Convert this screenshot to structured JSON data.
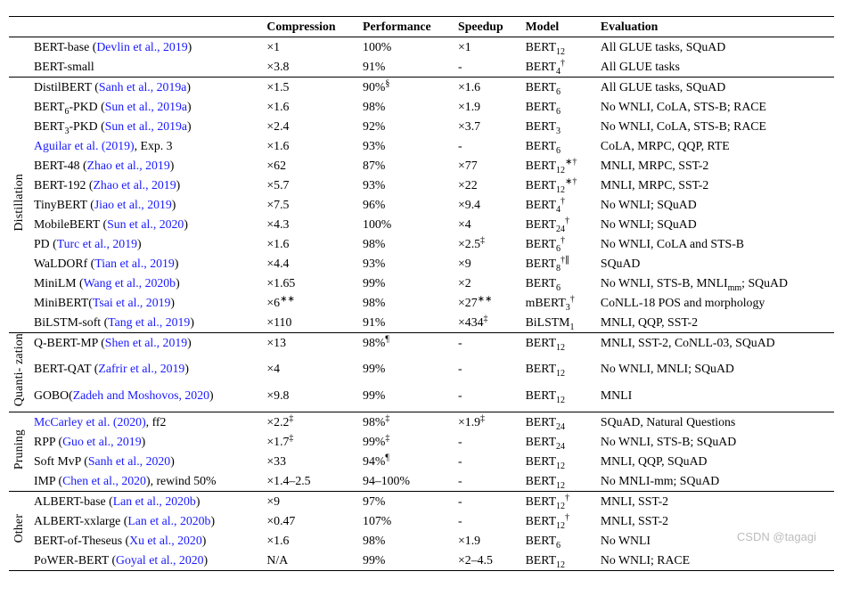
{
  "columns": [
    "Compression",
    "Performance",
    "Speedup",
    "Model",
    "Evaluation"
  ],
  "groups": [
    {
      "label": "",
      "rows": [
        {
          "name_plain": "BERT-base (",
          "ref": "Devlin et al., 2019",
          "name_tail": ")",
          "compression": "×1",
          "performance": "100%",
          "speedup": "×1",
          "model_base": "BERT",
          "model_sub": "12",
          "model_sup": "",
          "evaluation": "All GLUE tasks, SQuAD"
        },
        {
          "name_plain": "BERT-small",
          "ref": "",
          "name_tail": "",
          "compression": "×3.8",
          "performance": "91%",
          "speedup": "-",
          "model_base": "BERT",
          "model_sub": "4",
          "model_sup": "†",
          "evaluation": "All GLUE tasks"
        }
      ]
    },
    {
      "label": "Distillation",
      "rows": [
        {
          "name_plain": "DistilBERT (",
          "ref": "Sanh et al., 2019a",
          "name_tail": ")",
          "compression": "×1.5",
          "performance": "90%",
          "perf_sup": "§",
          "speedup": "×1.6",
          "model_base": "BERT",
          "model_sub": "6",
          "model_sup": "",
          "evaluation": "All GLUE tasks, SQuAD"
        },
        {
          "name_plain": "BERT",
          "name_sub": "6",
          "name_plain2": "-PKD (",
          "ref": "Sun et al., 2019a",
          "name_tail": ")",
          "compression": "×1.6",
          "performance": "98%",
          "speedup": "×1.9",
          "model_base": "BERT",
          "model_sub": "6",
          "model_sup": "",
          "evaluation": "No WNLI, CoLA, STS-B; RACE"
        },
        {
          "name_plain": "BERT",
          "name_sub": "3",
          "name_plain2": "-PKD (",
          "ref": "Sun et al., 2019a",
          "name_tail": ")",
          "compression": "×2.4",
          "performance": "92%",
          "speedup": "×3.7",
          "model_base": "BERT",
          "model_sub": "3",
          "model_sup": "",
          "evaluation": "No WNLI, CoLA, STS-B; RACE"
        },
        {
          "name_plain": "",
          "ref": "Aguilar et al. (2019)",
          "name_tail": ", Exp. 3",
          "compression": "×1.6",
          "performance": "93%",
          "speedup": "-",
          "model_base": "BERT",
          "model_sub": "6",
          "model_sup": "",
          "evaluation": "CoLA, MRPC, QQP, RTE"
        },
        {
          "name_plain": "BERT-48 (",
          "ref": "Zhao et al., 2019",
          "name_tail": ")",
          "compression": "×62",
          "performance": "87%",
          "speedup": "×77",
          "model_base": "BERT",
          "model_sub": "12",
          "model_sup": "∗†",
          "evaluation": "MNLI, MRPC, SST-2"
        },
        {
          "name_plain": "BERT-192 (",
          "ref": "Zhao et al., 2019",
          "name_tail": ")",
          "compression": "×5.7",
          "performance": "93%",
          "speedup": "×22",
          "model_base": "BERT",
          "model_sub": "12",
          "model_sup": "∗†",
          "evaluation": "MNLI, MRPC, SST-2"
        },
        {
          "name_plain": "TinyBERT (",
          "ref": "Jiao et al., 2019",
          "name_tail": ")",
          "compression": "×7.5",
          "performance": "96%",
          "speedup": "×9.4",
          "model_base": "BERT",
          "model_sub": "4",
          "model_sup": "†",
          "evaluation": "No WNLI; SQuAD"
        },
        {
          "name_plain": "MobileBERT (",
          "ref": "Sun et al., 2020",
          "name_tail": ")",
          "compression": "×4.3",
          "performance": "100%",
          "speedup": "×4",
          "model_base": "BERT",
          "model_sub": "24",
          "model_sup": "†",
          "evaluation": "No WNLI; SQuAD"
        },
        {
          "name_plain": "PD (",
          "ref": "Turc et al., 2019",
          "name_tail": ")",
          "compression": "×1.6",
          "performance": "98%",
          "speedup": "×2.5",
          "speed_sup": "‡",
          "model_base": "BERT",
          "model_sub": "6",
          "model_sup": "†",
          "evaluation": "No WNLI, CoLA and STS-B"
        },
        {
          "name_plain": "WaLDORf (",
          "ref": "Tian et al., 2019",
          "name_tail": ")",
          "compression": "×4.4",
          "performance": "93%",
          "speedup": "×9",
          "model_base": "BERT",
          "model_sub": "8",
          "model_sup": "†∥",
          "evaluation": "SQuAD"
        },
        {
          "name_plain": "MiniLM (",
          "ref": "Wang et al., 2020b",
          "name_tail": ")",
          "compression": "×1.65",
          "performance": "99%",
          "speedup": "×2",
          "model_base": "BERT",
          "model_sub": "6",
          "model_sup": "",
          "evaluation": "No WNLI, STS-B, MNLI",
          "eval_sub": "mm",
          "eval_tail": "; SQuAD"
        },
        {
          "name_plain": "MiniBERT(",
          "ref": "Tsai et al., 2019",
          "name_tail": ")",
          "compression": "×6",
          "comp_sup": "∗∗",
          "performance": "98%",
          "speedup": "×27",
          "speed_sup": "∗∗",
          "model_base": "mBERT",
          "model_sub": "3",
          "model_sup": "†",
          "evaluation": "CoNLL-18 POS and morphology"
        },
        {
          "name_plain": "BiLSTM-soft (",
          "ref": "Tang et al., 2019",
          "name_tail": ")",
          "compression": "×110",
          "performance": "91%",
          "speedup": "×434",
          "speed_sup": "‡",
          "model_base": "BiLSTM",
          "model_sub": "1",
          "model_sup": "",
          "evaluation": "MNLI, QQP, SST-2"
        }
      ]
    },
    {
      "label": "Quanti-\nzation",
      "rows": [
        {
          "name_plain": "Q-BERT-MP (",
          "ref": "Shen et al., 2019",
          "name_tail": ")",
          "compression": "×13",
          "performance": "98%",
          "perf_sup": "¶",
          "speedup": "-",
          "model_base": "BERT",
          "model_sub": "12",
          "model_sup": "",
          "evaluation": "MNLI, SST-2, CoNLL-03, SQuAD"
        },
        {
          "name_plain": "BERT-QAT (",
          "ref": "Zafrir et al., 2019",
          "name_tail": ")",
          "compression": "×4",
          "performance": "99%",
          "speedup": "-",
          "model_base": "BERT",
          "model_sub": "12",
          "model_sup": "",
          "evaluation": "No WNLI, MNLI; SQuAD"
        },
        {
          "name_plain": "GOBO(",
          "ref": "Zadeh and Moshovos, 2020",
          "name_tail": ")",
          "compression": "×9.8",
          "performance": "99%",
          "speedup": "-",
          "model_base": "BERT",
          "model_sub": "12",
          "model_sup": "",
          "evaluation": "MNLI"
        }
      ]
    },
    {
      "label": "Pruning",
      "rows": [
        {
          "name_plain": "",
          "ref": "McCarley et al. (2020)",
          "name_tail": ", ff2",
          "compression": "×2.2",
          "comp_sup": "‡",
          "performance": "98%",
          "perf_sup": "‡",
          "speedup": "×1.9",
          "speed_sup": "‡",
          "model_base": "BERT",
          "model_sub": "24",
          "model_sup": "",
          "evaluation": "SQuAD, Natural Questions"
        },
        {
          "name_plain": "RPP (",
          "ref": "Guo et al., 2019",
          "name_tail": ")",
          "compression": "×1.7",
          "comp_sup": "‡",
          "performance": "99%",
          "perf_sup": "‡",
          "speedup": "-",
          "model_base": "BERT",
          "model_sub": "24",
          "model_sup": "",
          "evaluation": "No WNLI, STS-B; SQuAD"
        },
        {
          "name_plain": "Soft MvP (",
          "ref": "Sanh et al., 2020",
          "name_tail": ")",
          "compression": "×33",
          "performance": "94%",
          "perf_sup": "¶",
          "speedup": "-",
          "model_base": "BERT",
          "model_sub": "12",
          "model_sup": "",
          "evaluation": "MNLI, QQP, SQuAD"
        },
        {
          "name_plain": "IMP (",
          "ref": "Chen et al., 2020",
          "name_tail": "), rewind 50%",
          "compression": "×1.4–2.5",
          "performance": "94–100%",
          "speedup": "-",
          "model_base": "BERT",
          "model_sub": "12",
          "model_sup": "",
          "evaluation": "No MNLI-mm; SQuAD"
        }
      ]
    },
    {
      "label": "Other",
      "rows": [
        {
          "name_plain": "ALBERT-base (",
          "ref": "Lan et al., 2020b",
          "name_tail": ")",
          "compression": "×9",
          "performance": "97%",
          "speedup": "-",
          "model_base": "BERT",
          "model_sub": "12",
          "model_sup": "†",
          "evaluation": "MNLI, SST-2"
        },
        {
          "name_plain": "ALBERT-xxlarge (",
          "ref": "Lan et al., 2020b",
          "name_tail": ")",
          "compression": "×0.47",
          "performance": "107%",
          "speedup": "-",
          "model_base": "BERT",
          "model_sub": "12",
          "model_sup": "†",
          "evaluation": "MNLI, SST-2"
        },
        {
          "name_plain": "BERT-of-Theseus (",
          "ref": "Xu et al., 2020",
          "name_tail": ")",
          "compression": "×1.6",
          "performance": "98%",
          "speedup": "×1.9",
          "model_base": "BERT",
          "model_sub": "6",
          "model_sup": "",
          "evaluation": "No WNLI"
        },
        {
          "name_plain": "PoWER-BERT (",
          "ref": "Goyal et al., 2020",
          "name_tail": ")",
          "compression": "N/A",
          "performance": "99%",
          "speedup": "×2–4.5",
          "model_base": "BERT",
          "model_sub": "12",
          "model_sup": "",
          "evaluation": "No WNLI; RACE"
        }
      ]
    }
  ],
  "watermark": "CSDN @tagagi"
}
